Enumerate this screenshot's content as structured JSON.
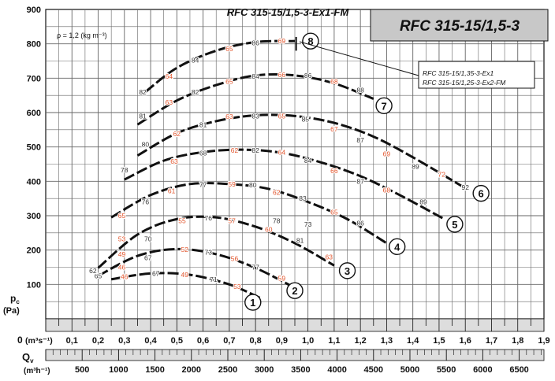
{
  "chart_data": {
    "type": "line",
    "title": "RFC 315-15/1,5-3-Ex1-FM",
    "title_box": "RFC 315-15/1,5-3",
    "density_label": "ρ = 1,2 (kg m⁻³)",
    "legend": {
      "line1": "RFC 315-15/1,35-3-Ex1",
      "line2": "RFC 315-15/1,25-3-Ex2-FM",
      "placement": "top-right"
    },
    "y_axis": {
      "label_line1": "p",
      "label_sub": "c",
      "label_line2": "(Pa)",
      "lim": [
        0,
        900
      ],
      "ticks": [
        {
          "v": 100,
          "label": "100"
        },
        {
          "v": 200,
          "label": "200"
        },
        {
          "v": 300,
          "label": "300"
        },
        {
          "v": 400,
          "label": "400"
        },
        {
          "v": 500,
          "label": "500"
        },
        {
          "v": 600,
          "label": "600"
        },
        {
          "v": 700,
          "label": "700"
        },
        {
          "v": 800,
          "label": "800"
        },
        {
          "v": 900,
          "label": "900"
        }
      ]
    },
    "x_axis": {
      "label_zero": "0",
      "unit_m3s": "(m³s⁻¹)",
      "lim": [
        0,
        1.9
      ],
      "ticks": [
        {
          "v": 0.1,
          "label": "0,1"
        },
        {
          "v": 0.2,
          "label": "0,2"
        },
        {
          "v": 0.3,
          "label": "0,3"
        },
        {
          "v": 0.4,
          "label": "0,4"
        },
        {
          "v": 0.5,
          "label": "0,5"
        },
        {
          "v": 0.6,
          "label": "0,6"
        },
        {
          "v": 0.7,
          "label": "0,7"
        },
        {
          "v": 0.8,
          "label": "0,8"
        },
        {
          "v": 0.9,
          "label": "0,9"
        },
        {
          "v": 1.0,
          "label": "1,0"
        },
        {
          "v": 1.1,
          "label": "1,1"
        },
        {
          "v": 1.2,
          "label": "1,2"
        },
        {
          "v": 1.3,
          "label": "1,3"
        },
        {
          "v": 1.4,
          "label": "1,4"
        },
        {
          "v": 1.5,
          "label": "1,5"
        },
        {
          "v": 1.6,
          "label": "1,6"
        },
        {
          "v": 1.7,
          "label": "1,7"
        },
        {
          "v": 1.8,
          "label": "1,8"
        },
        {
          "v": 1.9,
          "label": "1,9"
        }
      ]
    },
    "x2_axis": {
      "label": "Q",
      "label_sub": "v",
      "unit_m3h": "(m³h⁻¹)",
      "ticks": [
        {
          "v": 500,
          "label": "500"
        },
        {
          "v": 1000,
          "label": "1000"
        },
        {
          "v": 1500,
          "label": "1500"
        },
        {
          "v": 2000,
          "label": "2000"
        },
        {
          "v": 2500,
          "label": "2500"
        },
        {
          "v": 3000,
          "label": "3000"
        },
        {
          "v": 3500,
          "label": "3500"
        },
        {
          "v": 4000,
          "label": "4000"
        },
        {
          "v": 4500,
          "label": "4500"
        },
        {
          "v": 5000,
          "label": "5000"
        },
        {
          "v": 5500,
          "label": "5500"
        },
        {
          "v": 6000,
          "label": "6000"
        },
        {
          "v": 6500,
          "label": "6500"
        }
      ]
    },
    "grid": true,
    "series": [
      {
        "name": "1",
        "x": [
          0.25,
          0.4,
          0.55,
          0.7,
          0.82
        ],
        "y": [
          115,
          132,
          128,
          100,
          60
        ],
        "label_x": 0.79,
        "label_y": 48,
        "points": [
          {
            "x": 0.3,
            "y": 123,
            "label": "46",
            "kind": "pressure"
          },
          {
            "x": 0.42,
            "y": 132,
            "label": "67",
            "kind": "efficiency"
          },
          {
            "x": 0.53,
            "y": 128,
            "label": "49",
            "kind": "pressure"
          },
          {
            "x": 0.64,
            "y": 115,
            "label": "71",
            "kind": "efficiency"
          },
          {
            "x": 0.73,
            "y": 94,
            "label": "53",
            "kind": "pressure"
          }
        ]
      },
      {
        "name": "2",
        "x": [
          0.2,
          0.35,
          0.5,
          0.65,
          0.8,
          0.95
        ],
        "y": [
          125,
          183,
          203,
          188,
          148,
          90
        ],
        "label_x": 0.95,
        "label_y": 82,
        "points": [
          {
            "x": 0.2,
            "y": 125,
            "label": "65",
            "kind": "efficiency"
          },
          {
            "x": 0.29,
            "y": 150,
            "label": "46",
            "kind": "pressure"
          },
          {
            "x": 0.39,
            "y": 178,
            "label": "67",
            "kind": "efficiency"
          },
          {
            "x": 0.53,
            "y": 202,
            "label": "52",
            "kind": "pressure"
          },
          {
            "x": 0.62,
            "y": 193,
            "label": "73",
            "kind": "efficiency"
          },
          {
            "x": 0.72,
            "y": 175,
            "label": "56",
            "kind": "pressure"
          },
          {
            "x": 0.8,
            "y": 150,
            "label": "77",
            "kind": "efficiency"
          },
          {
            "x": 0.9,
            "y": 118,
            "label": "59",
            "kind": "pressure"
          }
        ]
      },
      {
        "name": "3",
        "x": [
          0.2,
          0.35,
          0.5,
          0.65,
          0.8,
          0.95,
          1.1
        ],
        "y": [
          148,
          245,
          290,
          295,
          268,
          220,
          155
        ],
        "label_x": 1.15,
        "label_y": 140,
        "points": [
          {
            "x": 0.18,
            "y": 140,
            "label": "62",
            "kind": "efficiency"
          },
          {
            "x": 0.29,
            "y": 188,
            "label": "49",
            "kind": "pressure"
          },
          {
            "x": 0.39,
            "y": 232,
            "label": "70",
            "kind": "efficiency"
          },
          {
            "x": 0.29,
            "y": 232,
            "label": "53",
            "kind": "pressure"
          },
          {
            "x": 0.52,
            "y": 285,
            "label": "55",
            "kind": "pressure"
          },
          {
            "x": 0.62,
            "y": 293,
            "label": "76",
            "kind": "efficiency"
          },
          {
            "x": 0.71,
            "y": 285,
            "label": "57",
            "kind": "pressure"
          },
          {
            "x": 0.85,
            "y": 260,
            "label": "60",
            "kind": "pressure"
          },
          {
            "x": 0.97,
            "y": 228,
            "label": "81",
            "kind": "efficiency"
          },
          {
            "x": 1.08,
            "y": 180,
            "label": "63",
            "kind": "pressure"
          }
        ]
      },
      {
        "name": "4",
        "x": [
          0.25,
          0.4,
          0.55,
          0.7,
          0.85,
          1.0,
          1.15,
          1.3
        ],
        "y": [
          295,
          360,
          392,
          392,
          378,
          340,
          290,
          220
        ],
        "label_x": 1.34,
        "label_y": 210,
        "points": [
          {
            "x": 0.29,
            "y": 300,
            "label": "65",
            "kind": "pressure"
          },
          {
            "x": 0.38,
            "y": 340,
            "label": "76",
            "kind": "efficiency"
          },
          {
            "x": 0.48,
            "y": 372,
            "label": "61",
            "kind": "pressure"
          },
          {
            "x": 0.6,
            "y": 390,
            "label": "77",
            "kind": "efficiency"
          },
          {
            "x": 0.71,
            "y": 392,
            "label": "59",
            "kind": "pressure"
          },
          {
            "x": 0.79,
            "y": 389,
            "label": "80",
            "kind": "efficiency"
          },
          {
            "x": 0.88,
            "y": 368,
            "label": "62",
            "kind": "pressure"
          },
          {
            "x": 0.98,
            "y": 350,
            "label": "83",
            "kind": "efficiency"
          },
          {
            "x": 1.1,
            "y": 310,
            "label": "65",
            "kind": "pressure"
          },
          {
            "x": 1.2,
            "y": 278,
            "label": "86",
            "kind": "efficiency"
          },
          {
            "x": 1.0,
            "y": 275,
            "label": "73",
            "kind": "efficiency"
          },
          {
            "x": 0.88,
            "y": 285,
            "label": "78",
            "kind": "efficiency"
          }
        ]
      },
      {
        "name": "5",
        "x": [
          0.3,
          0.45,
          0.6,
          0.75,
          0.9,
          1.05,
          1.2,
          1.35,
          1.52
        ],
        "y": [
          405,
          460,
          485,
          492,
          483,
          455,
          415,
          360,
          290
        ],
        "label_x": 1.56,
        "label_y": 275,
        "points": [
          {
            "x": 0.3,
            "y": 433,
            "label": "78",
            "kind": "efficiency"
          },
          {
            "x": 0.49,
            "y": 458,
            "label": "63",
            "kind": "pressure"
          },
          {
            "x": 0.6,
            "y": 482,
            "label": "68",
            "kind": "efficiency"
          },
          {
            "x": 0.72,
            "y": 490,
            "label": "62",
            "kind": "pressure"
          },
          {
            "x": 0.8,
            "y": 490,
            "label": "82",
            "kind": "efficiency"
          },
          {
            "x": 0.9,
            "y": 484,
            "label": "64",
            "kind": "pressure"
          },
          {
            "x": 1.0,
            "y": 460,
            "label": "84",
            "kind": "efficiency"
          },
          {
            "x": 1.1,
            "y": 430,
            "label": "66",
            "kind": "pressure"
          },
          {
            "x": 1.2,
            "y": 400,
            "label": "87",
            "kind": "efficiency"
          },
          {
            "x": 1.3,
            "y": 375,
            "label": "68",
            "kind": "pressure"
          },
          {
            "x": 1.44,
            "y": 340,
            "label": "89",
            "kind": "efficiency"
          }
        ]
      },
      {
        "name": "6",
        "x": [
          0.35,
          0.5,
          0.65,
          0.8,
          0.95,
          1.1,
          1.25,
          1.4,
          1.6
        ],
        "y": [
          475,
          540,
          575,
          592,
          590,
          570,
          530,
          470,
          380
        ],
        "label_x": 1.66,
        "label_y": 365,
        "points": [
          {
            "x": 0.38,
            "y": 507,
            "label": "80",
            "kind": "efficiency"
          },
          {
            "x": 0.5,
            "y": 538,
            "label": "62",
            "kind": "pressure"
          },
          {
            "x": 0.6,
            "y": 565,
            "label": "81",
            "kind": "efficiency"
          },
          {
            "x": 0.7,
            "y": 588,
            "label": "63",
            "kind": "pressure"
          },
          {
            "x": 0.8,
            "y": 590,
            "label": "83",
            "kind": "efficiency"
          },
          {
            "x": 0.9,
            "y": 590,
            "label": "65",
            "kind": "pressure"
          },
          {
            "x": 0.99,
            "y": 580,
            "label": "85",
            "kind": "efficiency"
          },
          {
            "x": 1.1,
            "y": 552,
            "label": "67",
            "kind": "pressure"
          },
          {
            "x": 1.2,
            "y": 520,
            "label": "87",
            "kind": "efficiency"
          },
          {
            "x": 1.3,
            "y": 480,
            "label": "69",
            "kind": "pressure"
          },
          {
            "x": 1.41,
            "y": 443,
            "label": "89",
            "kind": "efficiency"
          },
          {
            "x": 1.51,
            "y": 420,
            "label": "72",
            "kind": "pressure"
          },
          {
            "x": 1.6,
            "y": 382,
            "label": "92",
            "kind": "efficiency"
          }
        ]
      },
      {
        "name": "7",
        "x": [
          0.35,
          0.5,
          0.65,
          0.8,
          0.95,
          1.1,
          1.25
        ],
        "y": [
          565,
          635,
          680,
          708,
          708,
          685,
          640
        ],
        "label_x": 1.29,
        "label_y": 620,
        "points": [
          {
            "x": 0.37,
            "y": 590,
            "label": "81",
            "kind": "efficiency"
          },
          {
            "x": 0.47,
            "y": 630,
            "label": "63",
            "kind": "pressure"
          },
          {
            "x": 0.57,
            "y": 660,
            "label": "82",
            "kind": "efficiency"
          },
          {
            "x": 0.7,
            "y": 690,
            "label": "65",
            "kind": "pressure"
          },
          {
            "x": 0.8,
            "y": 705,
            "label": "84",
            "kind": "efficiency"
          },
          {
            "x": 0.9,
            "y": 710,
            "label": "66",
            "kind": "pressure"
          },
          {
            "x": 1.0,
            "y": 708,
            "label": "86",
            "kind": "efficiency"
          },
          {
            "x": 1.1,
            "y": 690,
            "label": "68",
            "kind": "pressure"
          },
          {
            "x": 1.2,
            "y": 665,
            "label": "88",
            "kind": "efficiency"
          }
        ]
      },
      {
        "name": "8",
        "x": [
          0.38,
          0.5,
          0.65,
          0.8,
          0.95
        ],
        "y": [
          660,
          730,
          780,
          805,
          808
        ],
        "label_x": 1.01,
        "label_y": 808,
        "points": [
          {
            "x": 0.37,
            "y": 660,
            "label": "82",
            "kind": "efficiency"
          },
          {
            "x": 0.47,
            "y": 705,
            "label": "64",
            "kind": "pressure"
          },
          {
            "x": 0.57,
            "y": 752,
            "label": "84",
            "kind": "efficiency"
          },
          {
            "x": 0.7,
            "y": 785,
            "label": "65",
            "kind": "pressure"
          },
          {
            "x": 0.8,
            "y": 803,
            "label": "86",
            "kind": "efficiency"
          },
          {
            "x": 0.9,
            "y": 808,
            "label": "69",
            "kind": "pressure"
          },
          {
            "x": 0.99,
            "y": 805,
            "label": "87",
            "kind": "efficiency"
          }
        ]
      }
    ],
    "colors": {
      "curve": "#111111",
      "grid": "#666666",
      "efficiency_label": "#333333",
      "pressure_label": "#e2542b",
      "title_box_fill": "#c8c8c8",
      "axis_band_fill": "#dddddd"
    }
  }
}
